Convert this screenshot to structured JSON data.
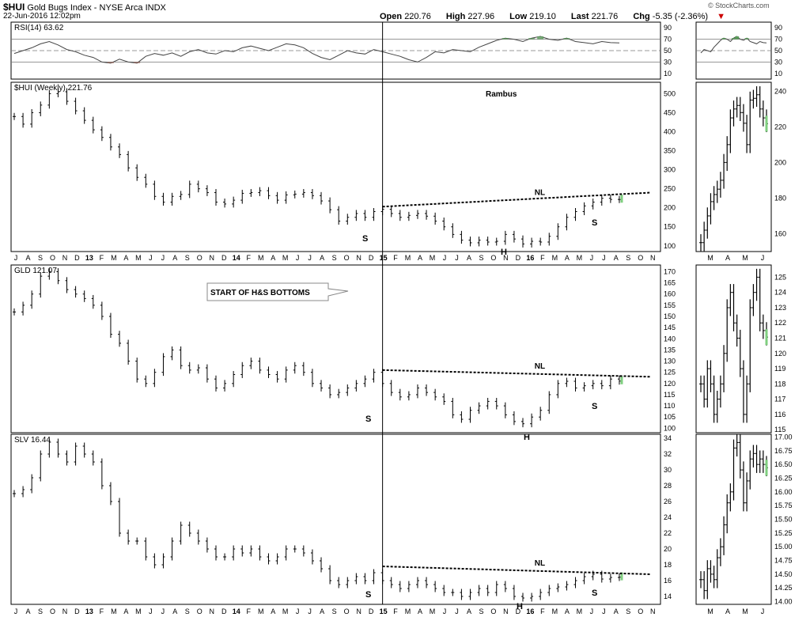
{
  "header": {
    "symbol": "$HUI",
    "title": "Gold Bugs Index - NYSE Arca  INDX",
    "date": "22-Jun-2016 12:02pm",
    "open_label": "Open",
    "open": "220.76",
    "high_label": "High",
    "high": "227.96",
    "low_label": "Low",
    "low": "219.10",
    "last_label": "Last",
    "last": "221.76",
    "chg_label": "Chg",
    "chg": "-5.35 (-2.36%)",
    "copyright": "© StockCharts.com"
  },
  "chart_data": [
    {
      "type": "line",
      "panel": "rsi",
      "title": "RSI(14) 63.62",
      "yticks": [
        10,
        30,
        50,
        70,
        90
      ],
      "ylim": [
        0,
        100
      ],
      "x": [
        0,
        3,
        6,
        9,
        12,
        15,
        18,
        21,
        24,
        27,
        30,
        33,
        36,
        39,
        42,
        45,
        48,
        51,
        54,
        57,
        60,
        63,
        66,
        69,
        72,
        75,
        78,
        81,
        84,
        87,
        90,
        93,
        96,
        99,
        102,
        105,
        108,
        111,
        114,
        117,
        120,
        123,
        126,
        129,
        132,
        135,
        138,
        141,
        144,
        147,
        150,
        153,
        156,
        159,
        162,
        165,
        168,
        171,
        174,
        177,
        180,
        183,
        186,
        189,
        192,
        195,
        198,
        201,
        204,
        207
      ],
      "values": [
        45,
        50,
        55,
        62,
        66,
        60,
        52,
        48,
        42,
        38,
        30,
        28,
        35,
        30,
        28,
        40,
        45,
        42,
        46,
        40,
        48,
        52,
        46,
        44,
        50,
        48,
        55,
        58,
        54,
        50,
        56,
        62,
        60,
        55,
        45,
        38,
        34,
        42,
        50,
        46,
        44,
        52,
        48,
        44,
        40,
        34,
        30,
        38,
        48,
        46,
        52,
        50,
        48,
        56,
        62,
        68,
        72,
        70,
        66,
        72,
        75,
        70,
        68,
        72,
        66,
        64,
        62,
        66,
        64,
        63.62
      ]
    },
    {
      "type": "bar",
      "panel": "hui",
      "title": "$HUI (Weekly) 221.76",
      "annotation": "Rambus",
      "yticks": [
        100,
        150,
        200,
        250,
        300,
        350,
        400,
        450,
        500
      ],
      "ylim": [
        85,
        530
      ],
      "x": [
        0,
        3,
        6,
        9,
        12,
        15,
        18,
        21,
        24,
        27,
        30,
        33,
        36,
        39,
        42,
        45,
        48,
        51,
        54,
        57,
        60,
        63,
        66,
        69,
        72,
        75,
        78,
        81,
        84,
        87,
        90,
        93,
        96,
        99,
        102,
        105,
        108,
        111,
        114,
        117,
        120,
        123,
        126,
        129,
        132,
        135,
        138,
        141,
        144,
        147,
        150,
        153,
        156,
        159,
        162,
        165,
        168,
        171,
        174,
        177,
        180,
        183,
        186,
        189,
        192,
        195,
        198,
        201,
        204,
        207
      ],
      "values": [
        440,
        420,
        450,
        470,
        500,
        505,
        480,
        455,
        430,
        405,
        385,
        360,
        340,
        305,
        280,
        262,
        230,
        215,
        230,
        235,
        262,
        250,
        240,
        215,
        210,
        220,
        238,
        240,
        245,
        232,
        220,
        234,
        236,
        240,
        232,
        218,
        195,
        165,
        175,
        185,
        175,
        190,
        196,
        185,
        175,
        180,
        185,
        178,
        165,
        150,
        130,
        115,
        108,
        115,
        110,
        112,
        130,
        118,
        105,
        112,
        110,
        125,
        150,
        175,
        190,
        205,
        215,
        225,
        222,
        221.76
      ],
      "neckline_label": "NL",
      "pattern_labels": [
        "S",
        "H",
        "S"
      ]
    },
    {
      "type": "bar",
      "panel": "gld",
      "title": "GLD 121.07",
      "annotation": "START OF H&S BOTTOMS",
      "yticks": [
        100,
        105,
        110,
        115,
        120,
        125,
        130,
        135,
        140,
        145,
        150,
        155,
        160,
        165,
        170
      ],
      "ylim": [
        98,
        173
      ],
      "x": [
        0,
        3,
        6,
        9,
        12,
        15,
        18,
        21,
        24,
        27,
        30,
        33,
        36,
        39,
        42,
        45,
        48,
        51,
        54,
        57,
        60,
        63,
        66,
        69,
        72,
        75,
        78,
        81,
        84,
        87,
        90,
        93,
        96,
        99,
        102,
        105,
        108,
        111,
        114,
        117,
        120,
        123,
        126,
        129,
        132,
        135,
        138,
        141,
        144,
        147,
        150,
        153,
        156,
        159,
        162,
        165,
        168,
        171,
        174,
        177,
        180,
        183,
        186,
        189,
        192,
        195,
        198,
        201,
        204,
        207
      ],
      "values": [
        152,
        155,
        160,
        168,
        170,
        166,
        162,
        160,
        158,
        155,
        150,
        142,
        138,
        130,
        122,
        120,
        125,
        132,
        135,
        128,
        126,
        127,
        122,
        118,
        120,
        124,
        128,
        130,
        126,
        124,
        122,
        126,
        128,
        125,
        120,
        118,
        115,
        116,
        118,
        120,
        122,
        125,
        120,
        116,
        114,
        115,
        118,
        116,
        114,
        112,
        106,
        104,
        108,
        110,
        112,
        110,
        106,
        103,
        102,
        105,
        108,
        115,
        120,
        121,
        118,
        119,
        120,
        119,
        122,
        121.07
      ],
      "neckline_label": "NL",
      "pattern_labels": [
        "S",
        "H",
        "S"
      ]
    },
    {
      "type": "bar",
      "panel": "slv",
      "title": "SLV 16.44",
      "yticks": [
        14,
        16,
        18,
        20,
        22,
        24,
        26,
        28,
        30,
        32,
        34
      ],
      "ylim": [
        13,
        34.5
      ],
      "x": [
        0,
        3,
        6,
        9,
        12,
        15,
        18,
        21,
        24,
        27,
        30,
        33,
        36,
        39,
        42,
        45,
        48,
        51,
        54,
        57,
        60,
        63,
        66,
        69,
        72,
        75,
        78,
        81,
        84,
        87,
        90,
        93,
        96,
        99,
        102,
        105,
        108,
        111,
        114,
        117,
        120,
        123,
        126,
        129,
        132,
        135,
        138,
        141,
        144,
        147,
        150,
        153,
        156,
        159,
        162,
        165,
        168,
        171,
        174,
        177,
        180,
        183,
        186,
        189,
        192,
        195,
        198,
        201,
        204,
        207
      ],
      "values": [
        27,
        27.5,
        29,
        32,
        33.5,
        32,
        31,
        33,
        32,
        31,
        28,
        26,
        22,
        21,
        21,
        19,
        18,
        19,
        21,
        23,
        22,
        21,
        20,
        19,
        19,
        20,
        19.5,
        20,
        19,
        18.5,
        19,
        20,
        20,
        19.5,
        18.5,
        17.5,
        16,
        15.5,
        16,
        16.5,
        16,
        17,
        16,
        15.5,
        15,
        15.5,
        16,
        15.5,
        15,
        14.5,
        14.5,
        14,
        14.5,
        15,
        14.5,
        15.5,
        15,
        14,
        13.8,
        14,
        14.5,
        15,
        15.2,
        15.5,
        16,
        16.5,
        16.8,
        16.2,
        16.4,
        16.44
      ],
      "neckline_label": "NL",
      "pattern_labels": [
        "S",
        "H",
        "S"
      ]
    }
  ],
  "x_axis": {
    "labels": [
      "J",
      "A",
      "S",
      "O",
      "N",
      "D",
      "13",
      "F",
      "M",
      "A",
      "M",
      "J",
      "J",
      "A",
      "S",
      "O",
      "N",
      "D",
      "14",
      "F",
      "M",
      "A",
      "M",
      "J",
      "J",
      "A",
      "S",
      "O",
      "N",
      "D",
      "15",
      "F",
      "M",
      "A",
      "M",
      "J",
      "J",
      "A",
      "S",
      "O",
      "N",
      "D",
      "16",
      "F",
      "M",
      "A",
      "M",
      "J",
      "J",
      "A",
      "S",
      "O",
      "N"
    ]
  },
  "zoom_panels": {
    "months": [
      "M",
      "A",
      "M",
      "J"
    ],
    "rsi_yticks": [
      10,
      30,
      50,
      70,
      90
    ],
    "hui_yticks": [
      160,
      180,
      200,
      220,
      240
    ],
    "hui_ylim": [
      150,
      245
    ],
    "hui_values": [
      155,
      162,
      170,
      178,
      182,
      185,
      190,
      200,
      210,
      225,
      230,
      232,
      228,
      222,
      210,
      235,
      236,
      238,
      230,
      225,
      221.76
    ],
    "gld_yticks": [
      115,
      116,
      117,
      118,
      119,
      120,
      121,
      122,
      123,
      124,
      125
    ],
    "gld_ylim": [
      114.8,
      125.8
    ],
    "gld_values": [
      118,
      117,
      119,
      118,
      116,
      117,
      118,
      120,
      123,
      124,
      122,
      121,
      119,
      116,
      118,
      123,
      124,
      125,
      122,
      121.5,
      121.07
    ],
    "slv_yticks": [
      "14.00",
      "14.25",
      "14.50",
      "14.75",
      "15.00",
      "15.25",
      "15.50",
      "15.75",
      "16.00",
      "16.25",
      "16.50",
      "16.75",
      "17.00"
    ],
    "slv_ylim": [
      13.95,
      17.05
    ],
    "slv_values": [
      14.4,
      14.2,
      14.6,
      14.5,
      14.4,
      14.8,
      15.0,
      15.4,
      15.8,
      16.0,
      16.8,
      16.9,
      16.4,
      15.8,
      16.2,
      16.6,
      16.7,
      16.5,
      16.6,
      16.5,
      16.44
    ]
  }
}
